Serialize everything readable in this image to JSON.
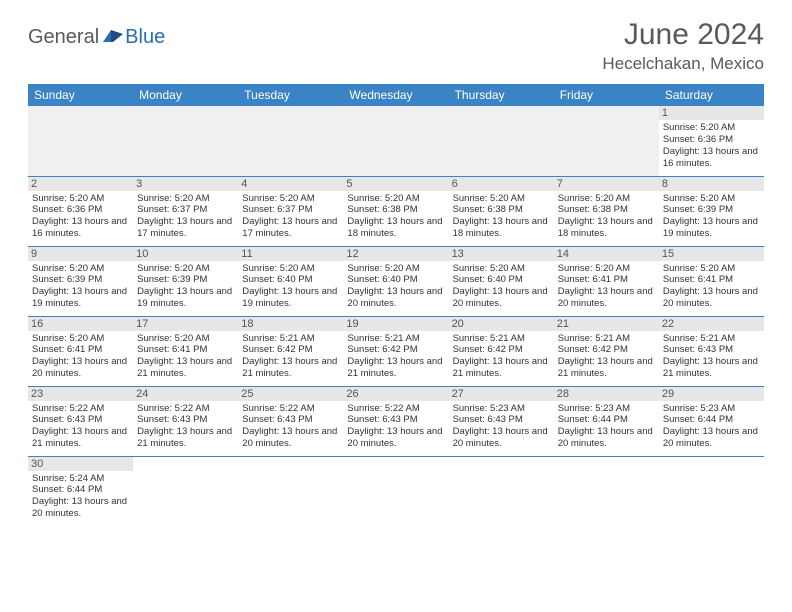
{
  "logo": {
    "general": "General",
    "blue": "Blue"
  },
  "title": "June 2024",
  "location": "Hecelchakan, Mexico",
  "colors": {
    "header_bg": "#3a83c4",
    "header_text": "#ffffff",
    "day_strip_bg": "#e7e7e7",
    "border": "#3a83c4",
    "logo_gray": "#5a5a5a",
    "logo_blue": "#2b6db4"
  },
  "weekdays": [
    "Sunday",
    "Monday",
    "Tuesday",
    "Wednesday",
    "Thursday",
    "Friday",
    "Saturday"
  ],
  "weeks": [
    [
      null,
      null,
      null,
      null,
      null,
      null,
      {
        "n": "1",
        "sr": "Sunrise: 5:20 AM",
        "ss": "Sunset: 6:36 PM",
        "dl": "Daylight: 13 hours and 16 minutes."
      }
    ],
    [
      {
        "n": "2",
        "sr": "Sunrise: 5:20 AM",
        "ss": "Sunset: 6:36 PM",
        "dl": "Daylight: 13 hours and 16 minutes."
      },
      {
        "n": "3",
        "sr": "Sunrise: 5:20 AM",
        "ss": "Sunset: 6:37 PM",
        "dl": "Daylight: 13 hours and 17 minutes."
      },
      {
        "n": "4",
        "sr": "Sunrise: 5:20 AM",
        "ss": "Sunset: 6:37 PM",
        "dl": "Daylight: 13 hours and 17 minutes."
      },
      {
        "n": "5",
        "sr": "Sunrise: 5:20 AM",
        "ss": "Sunset: 6:38 PM",
        "dl": "Daylight: 13 hours and 18 minutes."
      },
      {
        "n": "6",
        "sr": "Sunrise: 5:20 AM",
        "ss": "Sunset: 6:38 PM",
        "dl": "Daylight: 13 hours and 18 minutes."
      },
      {
        "n": "7",
        "sr": "Sunrise: 5:20 AM",
        "ss": "Sunset: 6:38 PM",
        "dl": "Daylight: 13 hours and 18 minutes."
      },
      {
        "n": "8",
        "sr": "Sunrise: 5:20 AM",
        "ss": "Sunset: 6:39 PM",
        "dl": "Daylight: 13 hours and 19 minutes."
      }
    ],
    [
      {
        "n": "9",
        "sr": "Sunrise: 5:20 AM",
        "ss": "Sunset: 6:39 PM",
        "dl": "Daylight: 13 hours and 19 minutes."
      },
      {
        "n": "10",
        "sr": "Sunrise: 5:20 AM",
        "ss": "Sunset: 6:39 PM",
        "dl": "Daylight: 13 hours and 19 minutes."
      },
      {
        "n": "11",
        "sr": "Sunrise: 5:20 AM",
        "ss": "Sunset: 6:40 PM",
        "dl": "Daylight: 13 hours and 19 minutes."
      },
      {
        "n": "12",
        "sr": "Sunrise: 5:20 AM",
        "ss": "Sunset: 6:40 PM",
        "dl": "Daylight: 13 hours and 20 minutes."
      },
      {
        "n": "13",
        "sr": "Sunrise: 5:20 AM",
        "ss": "Sunset: 6:40 PM",
        "dl": "Daylight: 13 hours and 20 minutes."
      },
      {
        "n": "14",
        "sr": "Sunrise: 5:20 AM",
        "ss": "Sunset: 6:41 PM",
        "dl": "Daylight: 13 hours and 20 minutes."
      },
      {
        "n": "15",
        "sr": "Sunrise: 5:20 AM",
        "ss": "Sunset: 6:41 PM",
        "dl": "Daylight: 13 hours and 20 minutes."
      }
    ],
    [
      {
        "n": "16",
        "sr": "Sunrise: 5:20 AM",
        "ss": "Sunset: 6:41 PM",
        "dl": "Daylight: 13 hours and 20 minutes."
      },
      {
        "n": "17",
        "sr": "Sunrise: 5:20 AM",
        "ss": "Sunset: 6:41 PM",
        "dl": "Daylight: 13 hours and 21 minutes."
      },
      {
        "n": "18",
        "sr": "Sunrise: 5:21 AM",
        "ss": "Sunset: 6:42 PM",
        "dl": "Daylight: 13 hours and 21 minutes."
      },
      {
        "n": "19",
        "sr": "Sunrise: 5:21 AM",
        "ss": "Sunset: 6:42 PM",
        "dl": "Daylight: 13 hours and 21 minutes."
      },
      {
        "n": "20",
        "sr": "Sunrise: 5:21 AM",
        "ss": "Sunset: 6:42 PM",
        "dl": "Daylight: 13 hours and 21 minutes."
      },
      {
        "n": "21",
        "sr": "Sunrise: 5:21 AM",
        "ss": "Sunset: 6:42 PM",
        "dl": "Daylight: 13 hours and 21 minutes."
      },
      {
        "n": "22",
        "sr": "Sunrise: 5:21 AM",
        "ss": "Sunset: 6:43 PM",
        "dl": "Daylight: 13 hours and 21 minutes."
      }
    ],
    [
      {
        "n": "23",
        "sr": "Sunrise: 5:22 AM",
        "ss": "Sunset: 6:43 PM",
        "dl": "Daylight: 13 hours and 21 minutes."
      },
      {
        "n": "24",
        "sr": "Sunrise: 5:22 AM",
        "ss": "Sunset: 6:43 PM",
        "dl": "Daylight: 13 hours and 21 minutes."
      },
      {
        "n": "25",
        "sr": "Sunrise: 5:22 AM",
        "ss": "Sunset: 6:43 PM",
        "dl": "Daylight: 13 hours and 20 minutes."
      },
      {
        "n": "26",
        "sr": "Sunrise: 5:22 AM",
        "ss": "Sunset: 6:43 PM",
        "dl": "Daylight: 13 hours and 20 minutes."
      },
      {
        "n": "27",
        "sr": "Sunrise: 5:23 AM",
        "ss": "Sunset: 6:43 PM",
        "dl": "Daylight: 13 hours and 20 minutes."
      },
      {
        "n": "28",
        "sr": "Sunrise: 5:23 AM",
        "ss": "Sunset: 6:44 PM",
        "dl": "Daylight: 13 hours and 20 minutes."
      },
      {
        "n": "29",
        "sr": "Sunrise: 5:23 AM",
        "ss": "Sunset: 6:44 PM",
        "dl": "Daylight: 13 hours and 20 minutes."
      }
    ],
    [
      {
        "n": "30",
        "sr": "Sunrise: 5:24 AM",
        "ss": "Sunset: 6:44 PM",
        "dl": "Daylight: 13 hours and 20 minutes."
      },
      null,
      null,
      null,
      null,
      null,
      null
    ]
  ]
}
